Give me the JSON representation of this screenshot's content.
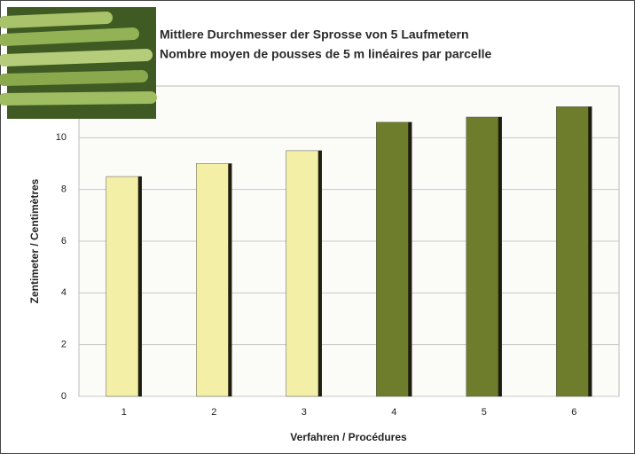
{
  "chart_data": {
    "type": "bar",
    "title": "Mittlere Durchmesser der Sprosse von 5 Laufmetern",
    "subtitle": "Nombre moyen de pousses de 5 m linéaires par parcelle",
    "x_label": "Verfahren / Procédures",
    "y_label": "Zentimeter / Centimètres",
    "categories": [
      "1",
      "2",
      "3",
      "4",
      "5",
      "6"
    ],
    "values": [
      8.5,
      9.0,
      9.5,
      10.6,
      10.8,
      11.2
    ],
    "colors": [
      "#f4efa6",
      "#f4efa6",
      "#f4efa6",
      "#6e7d2b",
      "#6e7d2b",
      "#6e7d2b"
    ],
    "ylim": [
      0,
      12
    ],
    "yticks": [
      0,
      2,
      4,
      6,
      8,
      10
    ],
    "grid": true
  }
}
